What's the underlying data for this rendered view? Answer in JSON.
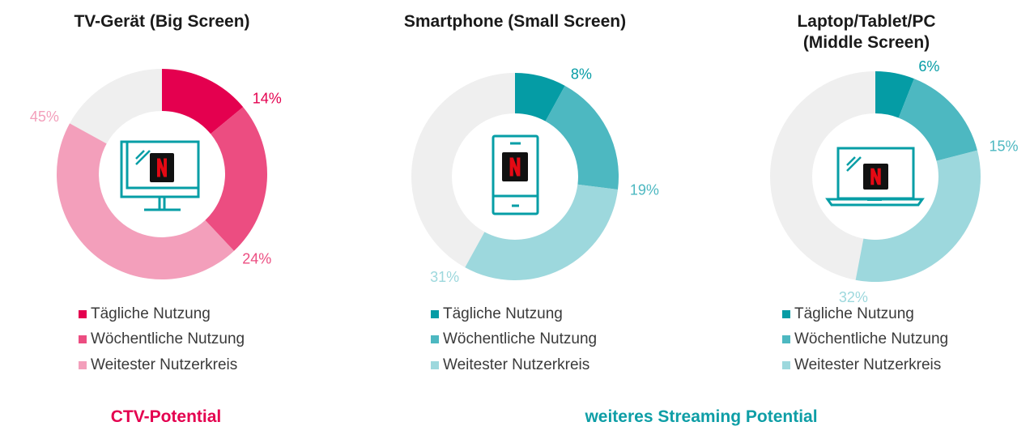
{
  "chart_data": [
    {
      "type": "donut",
      "title": "TV-Gerät (Big Screen)",
      "series": [
        {
          "name": "Tägliche Nutzung",
          "value": 14,
          "label": "14%"
        },
        {
          "name": "Wöchentliche Nutzung",
          "value": 24,
          "label": "24%"
        },
        {
          "name": "Weitester Nutzerkreis",
          "value": 45,
          "label": "45%"
        }
      ],
      "max": 100,
      "colors": [
        "#e4004f",
        "#ec4d81",
        "#f39fbb"
      ],
      "icon": "tv-icon"
    },
    {
      "type": "donut",
      "title": "Smartphone (Small Screen)",
      "series": [
        {
          "name": "Tägliche Nutzung",
          "value": 8,
          "label": "8%"
        },
        {
          "name": "Wöchentliche Nutzung",
          "value": 19,
          "label": "19%"
        },
        {
          "name": "Weitester Nutzerkreis",
          "value": 31,
          "label": "31%"
        }
      ],
      "max": 100,
      "colors": [
        "#059ca5",
        "#4db8c1",
        "#9dd8dd"
      ],
      "icon": "smartphone-icon"
    },
    {
      "type": "donut",
      "title": "Laptop/Tablet/PC\n(Middle Screen)",
      "series": [
        {
          "name": "Tägliche Nutzung",
          "value": 6,
          "label": "6%"
        },
        {
          "name": "Wöchentliche Nutzung",
          "value": 15,
          "label": "15%"
        },
        {
          "name": "Weitester Nutzerkreis",
          "value": 32,
          "label": "32%"
        }
      ],
      "max": 100,
      "colors": [
        "#059ca5",
        "#4db8c1",
        "#9dd8dd"
      ],
      "icon": "laptop-icon"
    }
  ],
  "footer": {
    "ctv": "CTV-Potential",
    "streaming": "weiteres Streaming Potential"
  },
  "colors": {
    "ring_background": "#efefef",
    "icon_stroke": "#069ea6",
    "netflix_box": "#111111",
    "netflix_n": "#e50914",
    "ctv_accent": "#e4004f",
    "streaming_accent": "#0e9ea6"
  }
}
